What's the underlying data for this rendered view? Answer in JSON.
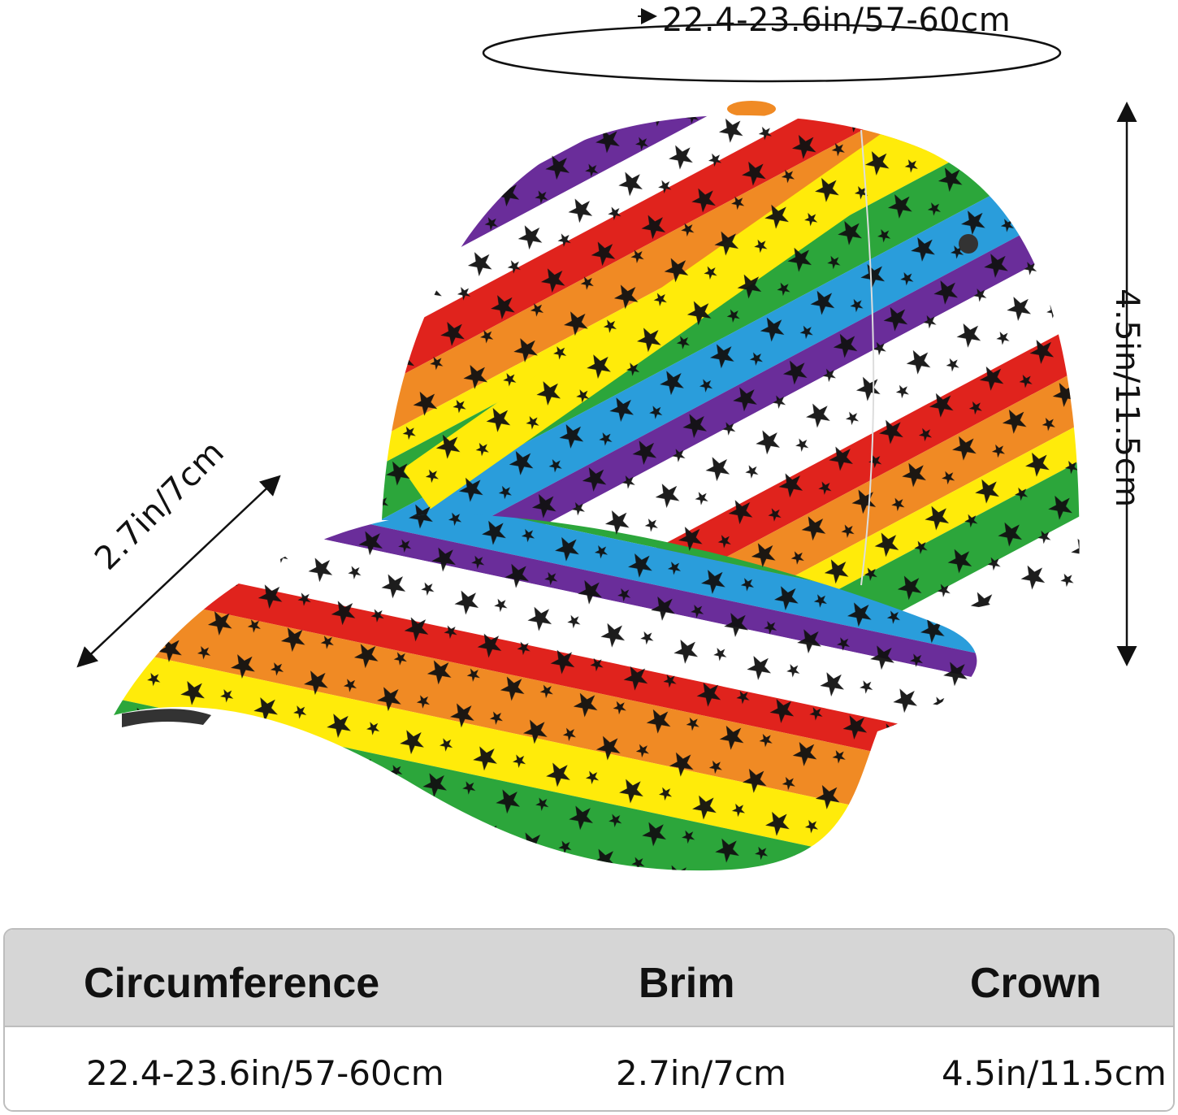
{
  "dimensions": {
    "circumference_label": "22.4-23.6in/57-60cm",
    "brim_label": "2.7in/7cm",
    "crown_label": "4.5in/11.5cm"
  },
  "hat": {
    "stripe_colors": [
      "#e0231d",
      "#f08a24",
      "#ffeb0a",
      "#2ca63b",
      "#2a9ddb",
      "#6a2d9a",
      "#ffffff"
    ],
    "star_color": "#111111"
  },
  "table": {
    "headers": [
      "Circumference",
      "Brim",
      "Crown"
    ],
    "values": [
      "22.4-23.6in/57-60cm",
      "2.7in/7cm",
      "4.5in/11.5cm"
    ]
  }
}
